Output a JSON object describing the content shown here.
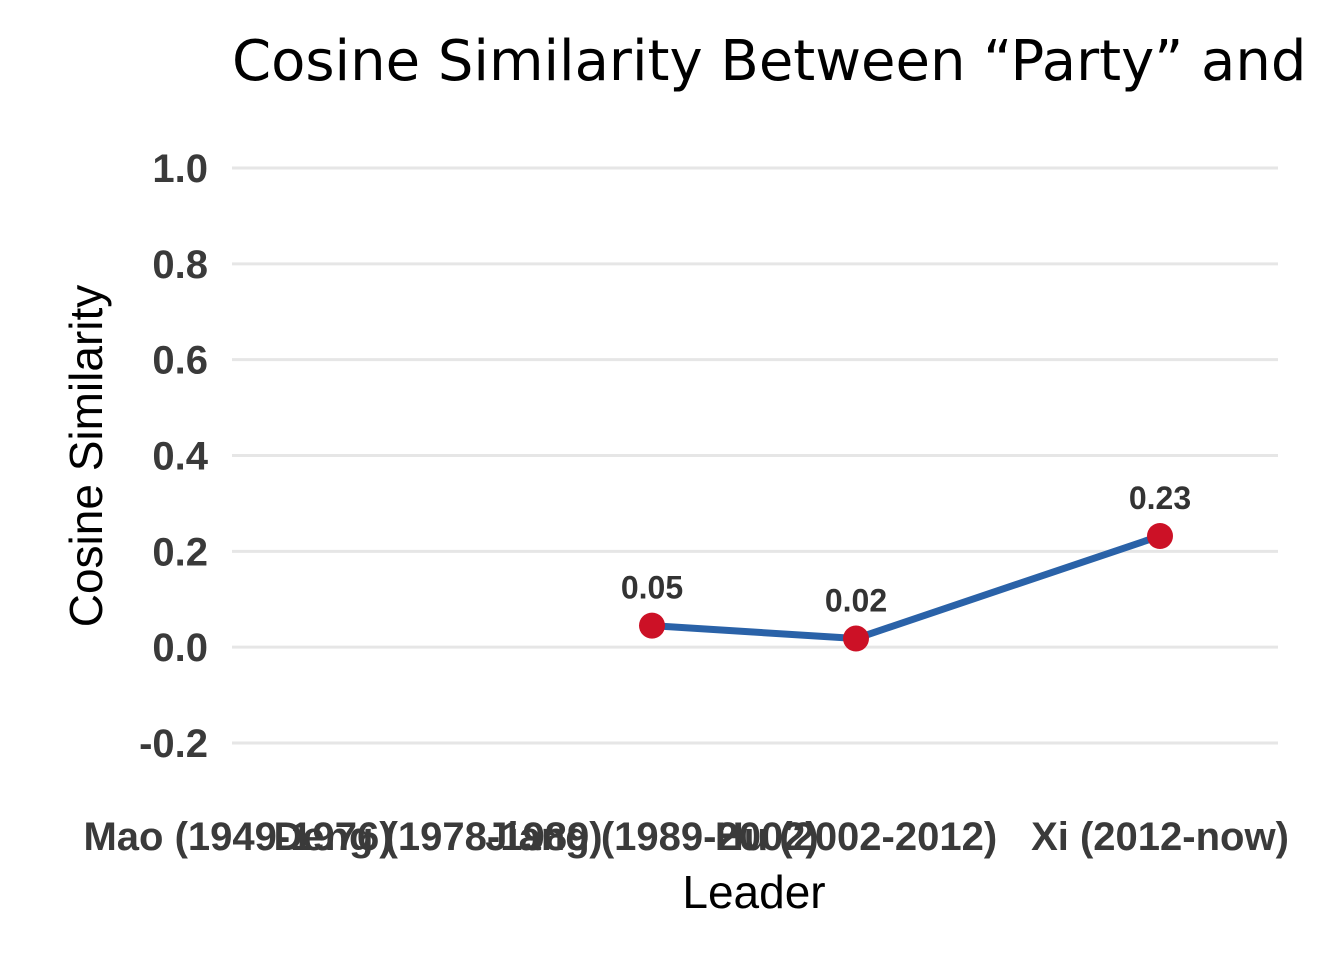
{
  "chart_data": {
    "type": "line",
    "title": "Cosine Similarity Between “Party” and",
    "xlabel": "Leader",
    "ylabel": "Cosine Similarity",
    "categories": [
      "Mao (1949-1976)",
      "Deng (1978-1989)",
      "Jiang (1989-2002)",
      "Hu (2002-2012)",
      "Xi (2012-now)"
    ],
    "series": [
      {
        "values": [
          null,
          null,
          0.045,
          0.018,
          0.232
        ],
        "labels": [
          "",
          "",
          "0.05",
          "0.02",
          "0.23"
        ]
      }
    ],
    "yticks": [
      "-0.2",
      "0.0",
      "0.2",
      "0.4",
      "0.6",
      "0.8",
      "1.0"
    ],
    "ylim": [
      -0.2,
      1.0
    ],
    "grid": true,
    "legend": "none",
    "colors": {
      "line": "#2a62a8",
      "marker": "#cc1126",
      "grid": "#e6e6e6"
    }
  }
}
